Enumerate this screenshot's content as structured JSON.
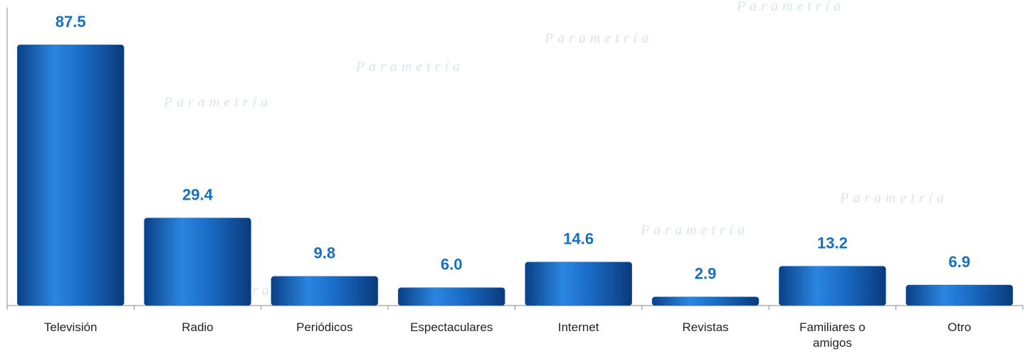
{
  "chart_data": {
    "type": "bar",
    "watermark": "Parametría",
    "categories": [
      "Televisión",
      "Radio",
      "Periódicos",
      "Espectaculares",
      "Internet",
      "Revistas",
      "Familiares o amigos",
      "Otro"
    ],
    "values": [
      87.5,
      29.4,
      9.8,
      6.0,
      14.6,
      2.9,
      13.2,
      6.9
    ],
    "value_labels": [
      "87.5",
      "29.4",
      "9.8",
      "6.0",
      "14.6",
      "2.9",
      "13.2",
      "6.9"
    ],
    "color": "#1670c8",
    "ylim": [
      0,
      100
    ]
  }
}
